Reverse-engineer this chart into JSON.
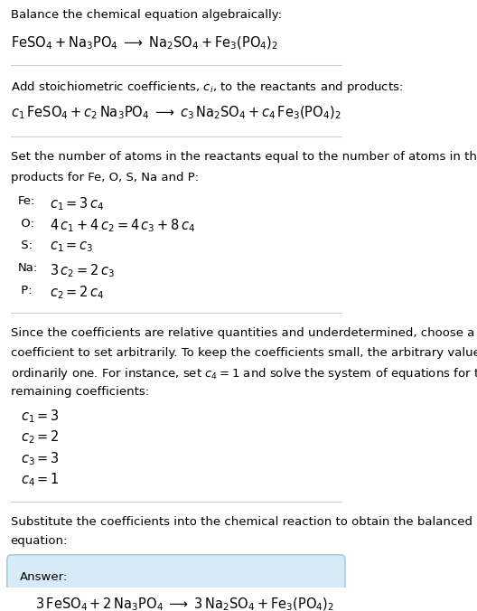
{
  "bg_color": "#ffffff",
  "text_color": "#000000",
  "section1_title": "Balance the chemical equation algebraically:",
  "section1_eq": "$\\mathrm{FeSO_4 + Na_3PO_4 \\;\\longrightarrow\\; Na_2SO_4 + Fe_3(PO_4)_2}$",
  "section2_title": "Add stoichiometric coefficients, $c_i$, to the reactants and products:",
  "section2_eq": "$c_1\\,\\mathrm{FeSO_4} + c_2\\,\\mathrm{Na_3PO_4} \\;\\longrightarrow\\; c_3\\,\\mathrm{Na_2SO_4} + c_4\\,\\mathrm{Fe_3(PO_4)_2}$",
  "section3_title": "Set the number of atoms in the reactants equal to the number of atoms in the\nproducts for Fe, O, S, Na and P:",
  "section3_equations": [
    [
      "Fe:",
      "$c_1 = 3\\,c_4$"
    ],
    [
      " O:",
      "$4\\,c_1 + 4\\,c_2 = 4\\,c_3 + 8\\,c_4$"
    ],
    [
      " S:",
      "$c_1 = c_3$"
    ],
    [
      "Na:",
      "$3\\,c_2 = 2\\,c_3$"
    ],
    [
      " P:",
      "$c_2 = 2\\,c_4$"
    ]
  ],
  "section4_title": "Since the coefficients are relative quantities and underdetermined, choose a\ncoefficient to set arbitrarily. To keep the coefficients small, the arbitrary value is\nordinarily one. For instance, set $c_4 = 1$ and solve the system of equations for the\nremaining coefficients:",
  "section4_values": [
    "$c_1 = 3$",
    "$c_2 = 2$",
    "$c_3 = 3$",
    "$c_4 = 1$"
  ],
  "section5_title": "Substitute the coefficients into the chemical reaction to obtain the balanced\nequation:",
  "answer_label": "Answer:",
  "answer_eq": "$3\\,\\mathrm{FeSO_4} + 2\\,\\mathrm{Na_3PO_4} \\;\\longrightarrow\\; 3\\,\\mathrm{Na_2SO_4} + \\mathrm{Fe_3(PO_4)_2}$",
  "answer_box_color": "#d6eaf8",
  "answer_box_edge": "#a9cce3",
  "separator_color": "#cccccc"
}
